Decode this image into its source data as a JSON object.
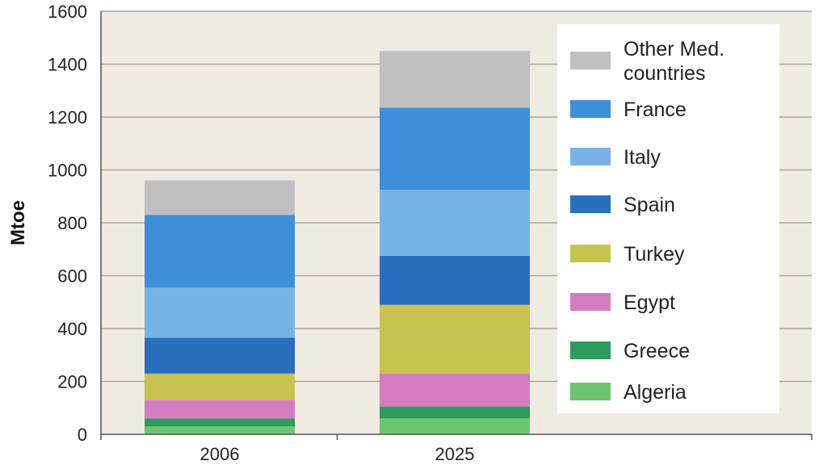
{
  "chart_data": {
    "type": "bar",
    "stacked": true,
    "categories": [
      "2006",
      "2025"
    ],
    "ylabel": "Mtoe",
    "ylim": [
      0,
      1600
    ],
    "yticks": [
      "0",
      "200",
      "400",
      "600",
      "800",
      "1000",
      "1200",
      "1400",
      "1600"
    ],
    "grid": true,
    "legend_position": "right",
    "series": [
      {
        "name": "Algeria",
        "color": "#6cc56c",
        "values": [
          30,
          60
        ]
      },
      {
        "name": "Greece",
        "color": "#2e9a5e",
        "values": [
          30,
          45
        ]
      },
      {
        "name": "Egypt",
        "color": "#d47cc0",
        "values": [
          70,
          125
        ]
      },
      {
        "name": "Turkey",
        "color": "#c9c24e",
        "values": [
          100,
          260
        ]
      },
      {
        "name": "Spain",
        "color": "#2a6fbd",
        "values": [
          135,
          185
        ]
      },
      {
        "name": "Italy",
        "color": "#79b3e4",
        "values": [
          190,
          250
        ]
      },
      {
        "name": "France",
        "color": "#3f8fd8",
        "values": [
          275,
          310
        ]
      },
      {
        "name": "Other Med. countries",
        "color": "#bfbfbf",
        "values": [
          130,
          215
        ]
      }
    ],
    "legend_lines": {
      "Other Med. countries": [
        "Other Med.",
        "countries"
      ]
    },
    "totals": [
      960,
      1450
    ]
  }
}
